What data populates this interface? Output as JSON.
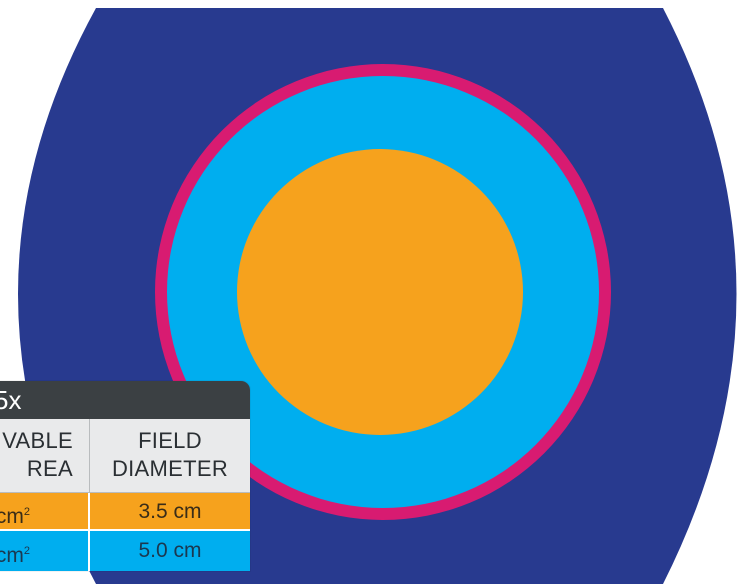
{
  "colors": {
    "field_outer": "#283a8f",
    "ring_magenta": "#d81b71",
    "ring_cyan": "#00aeef",
    "center_orange": "#f6a21d",
    "table_header_bg": "#3b4043"
  },
  "table": {
    "magnification": "5x",
    "columns": {
      "area_label_line1": "VABLE",
      "area_label_line2": "REA",
      "diameter_label_line1": "FIELD",
      "diameter_label_line2": "DIAMETER"
    },
    "rows": [
      {
        "area": "cm",
        "area_sup": "2",
        "diameter": "3.5 cm"
      },
      {
        "area": "cm",
        "area_sup": "2",
        "diameter": "5.0 cm"
      }
    ]
  }
}
